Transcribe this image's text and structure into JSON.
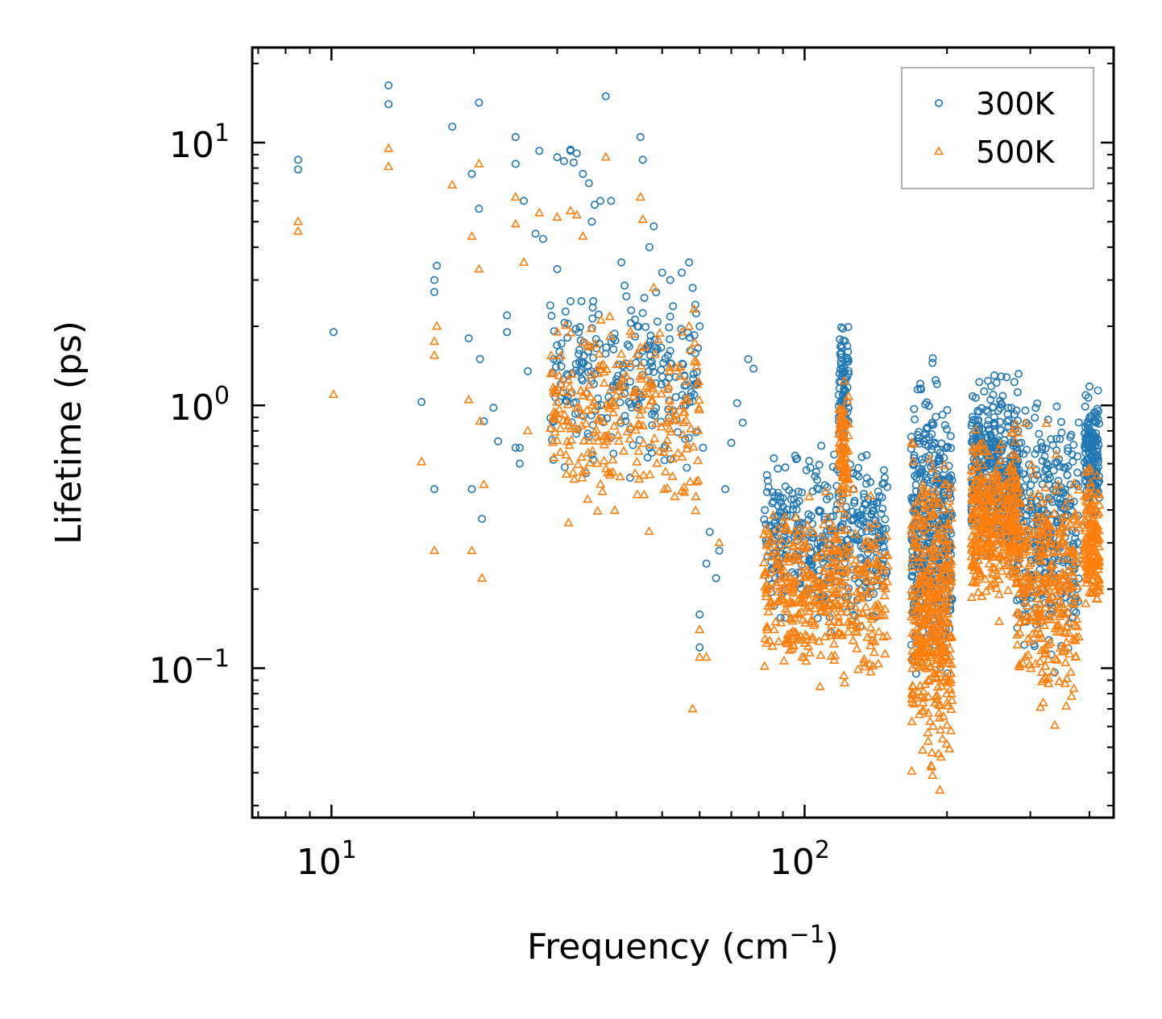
{
  "chart_data": {
    "type": "scatter",
    "title": "",
    "xlabel": "Frequency (cm",
    "xlabel_superscript": "−1",
    "xlabel_suffix": ")",
    "ylabel": "Lifetime (ps)",
    "xscale": "log",
    "yscale": "log",
    "xlim": [
      6.8,
      450
    ],
    "ylim": [
      0.027,
      23
    ],
    "x_ticks": [
      {
        "value": 10,
        "base": "10",
        "exp": "1"
      },
      {
        "value": 100,
        "base": "10",
        "exp": "2"
      }
    ],
    "y_ticks": [
      {
        "value": 0.1,
        "base": "10",
        "exp": "−1"
      },
      {
        "value": 1,
        "base": "10",
        "exp": "0"
      },
      {
        "value": 10,
        "base": "10",
        "exp": "1"
      }
    ],
    "legend": {
      "position": "top-right",
      "entries": [
        {
          "label": "300K",
          "marker": "circle",
          "color": "#1f77b4"
        },
        {
          "label": "500K",
          "marker": "triangle",
          "color": "#ff7f0e"
        }
      ]
    },
    "series": [
      {
        "name": "300K",
        "marker": "circle",
        "color": "#1f77b4",
        "points": [
          [
            8.5,
            8.6
          ],
          [
            8.5,
            7.9
          ],
          [
            10.1,
            1.9
          ],
          [
            13.2,
            16.5
          ],
          [
            13.2,
            14.0
          ],
          [
            15.5,
            1.03
          ],
          [
            16.5,
            2.7
          ],
          [
            16.5,
            3.0
          ],
          [
            16.7,
            3.4
          ],
          [
            16.5,
            0.48
          ],
          [
            18.0,
            11.5
          ],
          [
            19.5,
            1.8
          ],
          [
            19.8,
            7.6
          ],
          [
            19.8,
            0.48
          ],
          [
            20.5,
            14.2
          ],
          [
            20.5,
            5.6
          ],
          [
            20.6,
            1.5
          ],
          [
            20.8,
            0.37
          ],
          [
            21.0,
            0.87
          ],
          [
            22.0,
            0.98
          ],
          [
            22.5,
            0.73
          ],
          [
            23.5,
            2.2
          ],
          [
            23.5,
            1.9
          ],
          [
            24.5,
            10.5
          ],
          [
            24.5,
            8.3
          ],
          [
            24.5,
            0.69
          ],
          [
            25.0,
            0.69
          ],
          [
            25.0,
            0.6
          ],
          [
            25.5,
            6.0
          ],
          [
            26.0,
            1.35
          ],
          [
            27.0,
            4.5
          ],
          [
            27.5,
            9.3
          ],
          [
            28.0,
            4.3
          ],
          [
            29.0,
            2.4
          ],
          [
            29.5,
            1.5
          ],
          [
            30.0,
            8.8
          ],
          [
            30.0,
            3.3
          ],
          [
            31.0,
            8.5
          ],
          [
            32.0,
            9.4
          ],
          [
            32.0,
            9.3
          ],
          [
            32.5,
            8.4
          ],
          [
            33.0,
            9.1
          ],
          [
            34.0,
            7.6
          ],
          [
            35.0,
            7.0
          ],
          [
            35.5,
            5.0
          ],
          [
            36.0,
            5.8
          ],
          [
            37.0,
            6.0
          ],
          [
            38.0,
            15.0
          ],
          [
            39.0,
            6.0
          ],
          [
            41.0,
            3.5
          ],
          [
            42.0,
            2.6
          ],
          [
            43.0,
            2.3
          ],
          [
            45.0,
            10.5
          ],
          [
            45.5,
            8.6
          ],
          [
            47.0,
            4.0
          ],
          [
            48.0,
            4.8
          ],
          [
            50.0,
            3.2
          ],
          [
            52.0,
            3.0
          ],
          [
            55.0,
            3.2
          ],
          [
            57.0,
            3.5
          ],
          [
            58.0,
            2.8
          ],
          [
            60.0,
            2.0
          ],
          [
            61.0,
            0.69
          ],
          [
            63.0,
            0.33
          ],
          [
            65.0,
            0.22
          ],
          [
            68.0,
            0.48
          ],
          [
            70.0,
            0.72
          ],
          [
            72.0,
            1.02
          ],
          [
            74.0,
            0.86
          ],
          [
            76.0,
            1.5
          ],
          [
            78.0,
            1.38
          ],
          [
            60.0,
            0.12
          ],
          [
            60.0,
            0.16
          ],
          [
            62.0,
            0.25
          ],
          [
            66.0,
            0.28
          ]
        ],
        "clusters": [
          {
            "x_range": [
              29,
              60
            ],
            "y_range": [
              0.45,
              3.5
            ],
            "count": 260
          },
          {
            "x_range": [
              82,
              150
            ],
            "y_range": [
              0.12,
              0.8
            ],
            "count": 420
          },
          {
            "x_range": [
              118,
              124
            ],
            "y_range": [
              0.5,
              2.6
            ],
            "count": 80
          },
          {
            "x_range": [
              168,
              205
            ],
            "y_range": [
              0.058,
              1.9
            ],
            "count": 420
          },
          {
            "x_range": [
              225,
              285
            ],
            "y_range": [
              0.2,
              1.6
            ],
            "count": 380
          },
          {
            "x_range": [
              280,
              380
            ],
            "y_range": [
              0.08,
              1.5
            ],
            "count": 320
          },
          {
            "x_range": [
              390,
              420
            ],
            "y_range": [
              0.3,
              1.3
            ],
            "count": 150
          }
        ]
      },
      {
        "name": "500K",
        "marker": "triangle",
        "color": "#ff7f0e",
        "points": [
          [
            8.5,
            5.0
          ],
          [
            8.5,
            4.6
          ],
          [
            10.1,
            1.1
          ],
          [
            13.2,
            9.5
          ],
          [
            13.2,
            8.1
          ],
          [
            15.5,
            0.61
          ],
          [
            16.5,
            1.55
          ],
          [
            16.5,
            1.75
          ],
          [
            16.7,
            2.0
          ],
          [
            16.5,
            0.28
          ],
          [
            18.0,
            6.9
          ],
          [
            19.5,
            1.05
          ],
          [
            19.8,
            4.4
          ],
          [
            19.8,
            0.28
          ],
          [
            20.5,
            8.3
          ],
          [
            20.5,
            3.3
          ],
          [
            20.6,
            0.87
          ],
          [
            20.8,
            0.22
          ],
          [
            21.0,
            0.5
          ],
          [
            24.5,
            6.2
          ],
          [
            24.5,
            4.9
          ],
          [
            25.5,
            3.5
          ],
          [
            26.0,
            0.8
          ],
          [
            27.5,
            5.4
          ],
          [
            30.0,
            5.2
          ],
          [
            30.0,
            1.9
          ],
          [
            32.0,
            5.5
          ],
          [
            33.0,
            5.3
          ],
          [
            34.0,
            4.4
          ],
          [
            38.0,
            8.8
          ],
          [
            45.0,
            6.2
          ],
          [
            45.5,
            5.1
          ],
          [
            48.0,
            2.8
          ],
          [
            55.0,
            1.9
          ],
          [
            57.0,
            2.0
          ],
          [
            58.0,
            0.07
          ],
          [
            60.0,
            0.11
          ],
          [
            60.0,
            0.14
          ],
          [
            62.0,
            0.11
          ],
          [
            66.0,
            0.3
          ]
        ],
        "clusters": [
          {
            "x_range": [
              29,
              60
            ],
            "y_range": [
              0.28,
              3.0
            ],
            "count": 260
          },
          {
            "x_range": [
              82,
              150
            ],
            "y_range": [
              0.07,
              0.55
            ],
            "count": 420
          },
          {
            "x_range": [
              118,
              124
            ],
            "y_range": [
              0.3,
              1.5
            ],
            "count": 80
          },
          {
            "x_range": [
              168,
              205
            ],
            "y_range": [
              0.031,
              0.9
            ],
            "count": 420
          },
          {
            "x_range": [
              225,
              285
            ],
            "y_range": [
              0.14,
              0.95
            ],
            "count": 380
          },
          {
            "x_range": [
              280,
              380
            ],
            "y_range": [
              0.047,
              0.9
            ],
            "count": 320
          },
          {
            "x_range": [
              390,
              420
            ],
            "y_range": [
              0.14,
              0.72
            ],
            "count": 150
          }
        ]
      }
    ]
  }
}
